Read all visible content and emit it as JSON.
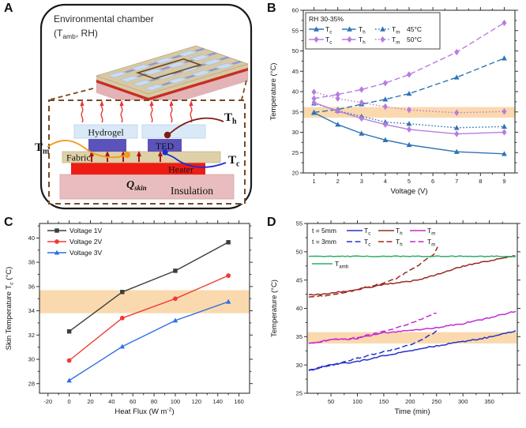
{
  "panels": {
    "a_letter": "A",
    "b_letter": "B",
    "c_letter": "C",
    "d_letter": "D"
  },
  "panelA": {
    "title": "Environmental chamber",
    "subtitle": {
      "pre": "(T",
      "sub": "amb",
      "post": ", RH)"
    },
    "labels": {
      "hydrogel": "Hydrogel",
      "ted": "TED",
      "fabric": "Fabric",
      "heater": "Heater",
      "insulation": "Insulation"
    },
    "probes": {
      "tm": {
        "t": "T",
        "sub": "m"
      },
      "th": {
        "t": "T",
        "sub": "h"
      },
      "tc": {
        "t": "T",
        "sub": "c"
      },
      "qskin": {
        "t": "Q",
        "sub": "skin"
      }
    },
    "colors": {
      "frame": "#1a1a1a",
      "dashed_box": "#7a4a22",
      "chip_top": "#d8c9a3",
      "chip_edge": "#b9a77e",
      "pad_light": "#c9dcf2",
      "pad_light_edge": "#9fb8d8",
      "pad_dark": "#8d98d8",
      "chip_red": "#cf2a21",
      "chip_pink": "#e3b3b5",
      "cell_outline": "#6e4620",
      "hydrogel": "#d9e9f8",
      "hydrogel_edge": "#b9d2ec",
      "ted": "#5b52ba",
      "fabric": "#ded1a7",
      "fabric_edge": "#c4b589",
      "heater": "#ee1c15",
      "insulation": "#e9bdbf",
      "insulation_edge": "#d5a3a6",
      "tm": "#f2991f",
      "th": "#7e1d14",
      "tc": "#1b2ed2",
      "qskin": "#e01616",
      "vapor_arrow": "#e23a3a",
      "heat_arrow": "#a81414"
    }
  },
  "chart_data": [
    {
      "id": "B",
      "type": "line",
      "xlabel": "Voltage (V)",
      "ylabel": "Temperature (°C)",
      "xlim": [
        0.55,
        9.45
      ],
      "ylim": [
        20,
        60
      ],
      "xticks": [
        1,
        2,
        3,
        4,
        5,
        6,
        7,
        8,
        9
      ],
      "yticks": [
        20,
        25,
        30,
        35,
        40,
        45,
        50,
        55,
        60
      ],
      "grid": false,
      "legend_position": "top-left",
      "legend_header": "RH 30-35%",
      "legend_groups": [
        "45°C",
        "50°C"
      ],
      "band": {
        "y0": 33.6,
        "y1": 36.2,
        "color": "#f6b45d",
        "opacity": 0.5
      },
      "x": [
        1,
        2,
        3,
        4,
        5,
        7,
        9
      ],
      "series": [
        {
          "name": "Tc 45C",
          "label": [
            "T",
            {
              "sub": "c"
            }
          ],
          "values": [
            34.8,
            31.9,
            29.7,
            28.1,
            26.9,
            25.2,
            24.7
          ],
          "style": "solid",
          "marker": "triangle",
          "color": "#2e73b5"
        },
        {
          "name": "Th 45C",
          "label": [
            "T",
            {
              "sub": "h"
            }
          ],
          "values": [
            34.9,
            35.6,
            36.9,
            38.1,
            39.5,
            43.5,
            48.2
          ],
          "style": "dash",
          "marker": "triangle",
          "color": "#2e73b5"
        },
        {
          "name": "Tm 45C",
          "label": [
            "T",
            {
              "sub": "m"
            }
          ],
          "values": [
            37.1,
            35.3,
            33.9,
            32.5,
            32.1,
            31.1,
            31.4
          ],
          "style": "dot",
          "marker": "triangle",
          "color": "#2e73b5"
        },
        {
          "name": "Tc 50C",
          "label": [
            "T",
            {
              "sub": "c"
            }
          ],
          "values": [
            37.3,
            35.2,
            33.4,
            31.9,
            30.7,
            29.6,
            30.0
          ],
          "style": "solid",
          "marker": "diamond",
          "color": "#b87ce0"
        },
        {
          "name": "Th 50C",
          "label": [
            "T",
            {
              "sub": "h"
            }
          ],
          "values": [
            38.3,
            39.3,
            40.5,
            42.1,
            44.2,
            49.7,
            56.9
          ],
          "style": "dash",
          "marker": "diamond",
          "color": "#b87ce0"
        },
        {
          "name": "Tm 50C",
          "label": [
            "T",
            {
              "sub": "m"
            }
          ],
          "values": [
            39.9,
            38.3,
            37.3,
            36.3,
            35.5,
            34.8,
            35.1
          ],
          "style": "dot",
          "marker": "diamond",
          "color": "#b87ce0"
        }
      ]
    },
    {
      "id": "C",
      "type": "line",
      "xlabel": [
        "Heat Flux (W m",
        {
          "sup": "-2"
        },
        ")"
      ],
      "ylabel": [
        "Skin Temperature T",
        {
          "sub": "c"
        },
        " (°C)"
      ],
      "xlim": [
        -28,
        170
      ],
      "ylim": [
        27.2,
        41.2
      ],
      "xticks": [
        -20,
        0,
        20,
        40,
        60,
        80,
        100,
        120,
        140,
        160
      ],
      "yticks": [
        28,
        30,
        32,
        34,
        36,
        38,
        40
      ],
      "grid": false,
      "legend_position": "top-left",
      "band": {
        "y0": 33.8,
        "y1": 35.7,
        "color": "#f6b45d",
        "opacity": 0.5
      },
      "x": [
        0,
        50,
        100,
        150
      ],
      "series": [
        {
          "name": "Voltage 1V",
          "label": "Voltage 1V",
          "values": [
            32.3,
            35.55,
            37.3,
            39.65
          ],
          "style": "solid",
          "marker": "square",
          "color": "#3d3d3d"
        },
        {
          "name": "Voltage 2V",
          "label": "Voltage 2V",
          "values": [
            29.9,
            33.4,
            35.0,
            36.9
          ],
          "style": "solid",
          "marker": "circle",
          "color": "#ee3b33"
        },
        {
          "name": "Voltage 3V",
          "label": "Voltage 3V",
          "values": [
            28.25,
            31.05,
            33.2,
            34.75
          ],
          "style": "solid",
          "marker": "triangle",
          "color": "#2f6fe4"
        }
      ]
    },
    {
      "id": "D",
      "type": "line",
      "xlabel": "Time (min)",
      "ylabel": "Temperature (°C)",
      "xlim": [
        5,
        403
      ],
      "ylim": [
        25,
        55
      ],
      "xticks": [
        50,
        100,
        150,
        200,
        250,
        300,
        350
      ],
      "yticks": [
        25,
        30,
        35,
        40,
        45,
        50,
        55
      ],
      "grid": false,
      "legend_position": "top-left",
      "legend_rows": [
        {
          "prefix": "t = 5mm",
          "series": [
            0,
            1,
            2
          ]
        },
        {
          "prefix": "t = 3mm",
          "series": [
            3,
            4,
            5
          ]
        },
        {
          "prefix": "",
          "series": [
            6
          ]
        }
      ],
      "band": {
        "y0": 33.8,
        "y1": 35.8,
        "color": "#f6b45d",
        "opacity": 0.5
      },
      "series": [
        {
          "name": "Tc 5mm",
          "label": [
            "T",
            {
              "sub": "c"
            }
          ],
          "x": [
            8,
            50,
            100,
            150,
            200,
            250,
            300,
            350,
            400
          ],
          "values": [
            29.0,
            30.1,
            30.6,
            31.6,
            32.5,
            33.4,
            34.1,
            34.9,
            36.0
          ],
          "style": "solid",
          "marker": null,
          "color": "#2633c8",
          "noisy": true
        },
        {
          "name": "Th 5mm",
          "label": [
            "T",
            {
              "sub": "h"
            }
          ],
          "x": [
            8,
            30,
            60,
            90,
            120,
            150,
            180,
            210,
            240,
            270,
            300,
            330,
            360,
            400
          ],
          "values": [
            42.4,
            42.5,
            42.8,
            43.2,
            43.7,
            44.2,
            44.6,
            44.9,
            45.7,
            46.6,
            47.4,
            48.1,
            48.6,
            49.3
          ],
          "style": "solid",
          "marker": null,
          "color": "#992a22",
          "noisy": true
        },
        {
          "name": "Tm 5mm",
          "label": [
            "T",
            {
              "sub": "m"
            }
          ],
          "x": [
            8,
            50,
            100,
            130,
            150,
            200,
            250,
            300,
            350,
            400
          ],
          "values": [
            33.8,
            34.4,
            34.7,
            35.3,
            35.7,
            36.1,
            36.6,
            37.3,
            38.3,
            39.5
          ],
          "style": "solid",
          "marker": null,
          "color": "#c32bd4",
          "noisy": true
        },
        {
          "name": "Tc 3mm",
          "label": [
            "T",
            {
              "sub": "c"
            }
          ],
          "x": [
            8,
            50,
            100,
            150,
            200,
            230,
            252
          ],
          "values": [
            29.1,
            29.9,
            31.2,
            32.3,
            33.6,
            34.8,
            36.1
          ],
          "style": "dash",
          "marker": null,
          "color": "#2633c8",
          "noisy": true
        },
        {
          "name": "Th 3mm",
          "label": [
            "T",
            {
              "sub": "h"
            }
          ],
          "x": [
            8,
            30,
            60,
            90,
            120,
            150,
            170,
            190,
            210,
            230,
            245,
            252
          ],
          "values": [
            42.0,
            42.2,
            42.5,
            43.1,
            43.8,
            44.5,
            45.1,
            46.2,
            47.3,
            48.6,
            49.6,
            50.9
          ],
          "style": "dash",
          "marker": null,
          "color": "#992a22",
          "noisy": true
        },
        {
          "name": "Tm 3mm",
          "label": [
            "T",
            {
              "sub": "m"
            }
          ],
          "x": [
            8,
            50,
            100,
            130,
            160,
            190,
            220,
            250
          ],
          "values": [
            33.8,
            34.4,
            34.9,
            35.5,
            36.1,
            37.0,
            38.1,
            39.2
          ],
          "style": "dash",
          "marker": null,
          "color": "#c32bd4",
          "noisy": true
        },
        {
          "name": "Tamb",
          "label": [
            "T",
            {
              "sub": "amb"
            }
          ],
          "x": [
            8,
            100,
            200,
            300,
            400
          ],
          "values": [
            49.2,
            49.2,
            49.2,
            49.2,
            49.2
          ],
          "style": "solid",
          "marker": null,
          "color": "#2fae69",
          "noisy": true,
          "amp": 0.06
        }
      ]
    }
  ]
}
